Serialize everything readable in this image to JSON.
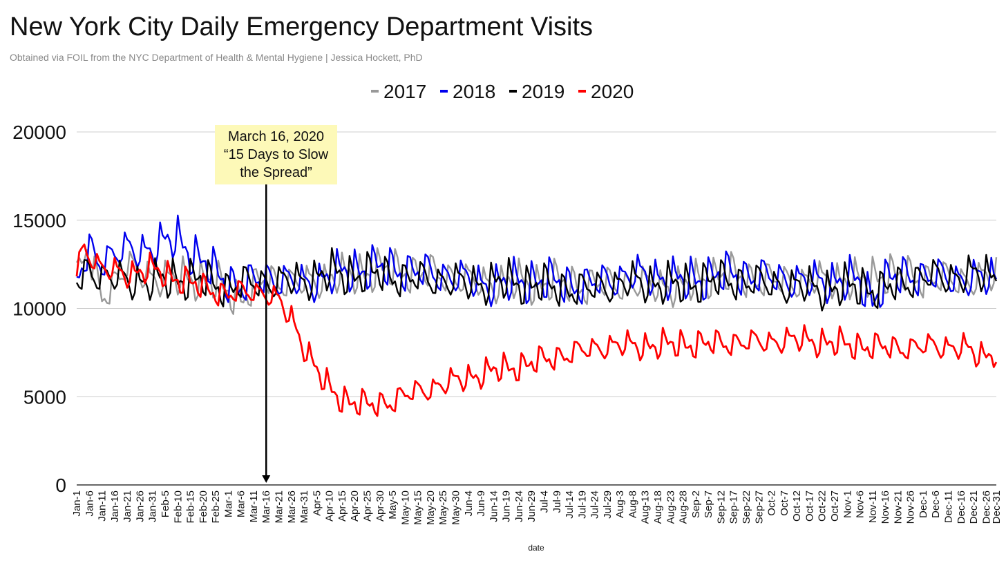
{
  "title": "New York City Daily Emergency Department Visits",
  "subtitle": "Obtained via FOIL from the NYC Department of Health & Mental Hygiene | Jessica Hockett, PhD",
  "chart_data": {
    "type": "line",
    "title": "New York City Daily Emergency Department Visits",
    "xlabel": "date",
    "ylabel": "",
    "ylim": [
      0,
      20000
    ],
    "yticks": [
      "20000",
      "15000",
      "10000",
      "5000",
      "0"
    ],
    "grid": true,
    "legend_position": "top-center",
    "x_tick_labels": [
      "Jan-1",
      "Jan-6",
      "Jan-11",
      "Jan-16",
      "Jan-21",
      "Jan-26",
      "Jan-31",
      "Feb-5",
      "Feb-10",
      "Feb-15",
      "Feb-20",
      "Feb-25",
      "Mar-1",
      "Mar-6",
      "Mar-11",
      "Mar-16",
      "Mar-21",
      "Mar-26",
      "Mar-31",
      "Apr-5",
      "Apr-10",
      "Apr-15",
      "Apr-20",
      "Apr-25",
      "Apr-30",
      "May-5",
      "May-10",
      "May-15",
      "May-20",
      "May-25",
      "May-30",
      "Jun-4",
      "Jun-9",
      "Jun-14",
      "Jun-19",
      "Jun-24",
      "Jun-29",
      "Jul-4",
      "Jul-9",
      "Jul-14",
      "Jul-19",
      "Jul-24",
      "Jul-29",
      "Aug-3",
      "Aug-8",
      "Aug-13",
      "Aug-18",
      "Aug-23",
      "Aug-28",
      "Sep-2",
      "Sep-7",
      "Sep-12",
      "Sep-17",
      "Sep-22",
      "Sep-27",
      "Oct-2",
      "Oct-7",
      "Oct-12",
      "Oct-17",
      "Oct-22",
      "Oct-27",
      "Nov-1",
      "Nov-6",
      "Nov-11",
      "Nov-16",
      "Nov-21",
      "Nov-26",
      "Dec-1",
      "Dec-6",
      "Dec-11",
      "Dec-16",
      "Dec-21",
      "Dec-26",
      "Dec-31"
    ],
    "tick_step_days": 5,
    "series": [
      {
        "name": "2017",
        "color": "#999999",
        "anchors": [
          [
            0,
            11600
          ],
          [
            4,
            13200
          ],
          [
            10,
            10800
          ],
          [
            20,
            12300
          ],
          [
            35,
            11600
          ],
          [
            45,
            11800
          ],
          [
            55,
            11400
          ],
          [
            65,
            10600
          ],
          [
            75,
            11700
          ],
          [
            90,
            11400
          ],
          [
            100,
            11800
          ],
          [
            110,
            11900
          ],
          [
            120,
            12200
          ],
          [
            130,
            12100
          ],
          [
            140,
            12000
          ],
          [
            150,
            11800
          ],
          [
            160,
            11400
          ],
          [
            170,
            11500
          ],
          [
            180,
            11400
          ],
          [
            190,
            11500
          ],
          [
            200,
            11300
          ],
          [
            210,
            11400
          ],
          [
            220,
            11400
          ],
          [
            230,
            11300
          ],
          [
            240,
            11200
          ],
          [
            250,
            11800
          ],
          [
            260,
            11900
          ],
          [
            270,
            11600
          ],
          [
            280,
            11600
          ],
          [
            290,
            11500
          ],
          [
            300,
            11700
          ],
          [
            310,
            11500
          ],
          [
            320,
            12000
          ],
          [
            330,
            11800
          ],
          [
            340,
            11700
          ],
          [
            350,
            11600
          ],
          [
            364,
            11800
          ]
        ],
        "amplitude": 1000
      },
      {
        "name": "2018",
        "color": "#0000ee",
        "anchors": [
          [
            0,
            11500
          ],
          [
            5,
            13300
          ],
          [
            10,
            12800
          ],
          [
            20,
            13300
          ],
          [
            30,
            13400
          ],
          [
            40,
            14000
          ],
          [
            48,
            12800
          ],
          [
            55,
            12000
          ],
          [
            65,
            11200
          ],
          [
            75,
            11800
          ],
          [
            90,
            11400
          ],
          [
            110,
            12200
          ],
          [
            120,
            12300
          ],
          [
            130,
            12200
          ],
          [
            140,
            12000
          ],
          [
            150,
            11800
          ],
          [
            160,
            11400
          ],
          [
            170,
            11400
          ],
          [
            180,
            11600
          ],
          [
            190,
            11500
          ],
          [
            200,
            11300
          ],
          [
            210,
            11600
          ],
          [
            220,
            11900
          ],
          [
            230,
            11800
          ],
          [
            240,
            11500
          ],
          [
            250,
            11800
          ],
          [
            260,
            12000
          ],
          [
            270,
            11800
          ],
          [
            280,
            11700
          ],
          [
            290,
            11500
          ],
          [
            300,
            11600
          ],
          [
            310,
            11500
          ],
          [
            315,
            10500
          ],
          [
            320,
            11600
          ],
          [
            330,
            11900
          ],
          [
            340,
            11800
          ],
          [
            350,
            11700
          ],
          [
            364,
            11700
          ]
        ],
        "amplitude": 1050
      },
      {
        "name": "2019",
        "color": "#000000",
        "anchors": [
          [
            0,
            11500
          ],
          [
            5,
            12300
          ],
          [
            10,
            11800
          ],
          [
            20,
            11600
          ],
          [
            30,
            11500
          ],
          [
            40,
            11700
          ],
          [
            50,
            11600
          ],
          [
            60,
            11200
          ],
          [
            70,
            11500
          ],
          [
            80,
            11500
          ],
          [
            90,
            11600
          ],
          [
            100,
            12000
          ],
          [
            110,
            11900
          ],
          [
            120,
            12000
          ],
          [
            130,
            11700
          ],
          [
            140,
            11700
          ],
          [
            150,
            11500
          ],
          [
            160,
            11400
          ],
          [
            170,
            11500
          ],
          [
            180,
            11400
          ],
          [
            190,
            11200
          ],
          [
            200,
            11100
          ],
          [
            210,
            11300
          ],
          [
            220,
            11500
          ],
          [
            230,
            11400
          ],
          [
            240,
            11300
          ],
          [
            250,
            11600
          ],
          [
            260,
            11600
          ],
          [
            270,
            11500
          ],
          [
            280,
            11300
          ],
          [
            290,
            11200
          ],
          [
            300,
            11100
          ],
          [
            310,
            11300
          ],
          [
            318,
            11000
          ],
          [
            325,
            11400
          ],
          [
            335,
            11800
          ],
          [
            345,
            11800
          ],
          [
            355,
            11900
          ],
          [
            364,
            11900
          ]
        ],
        "amplitude": 1000
      },
      {
        "name": "2020",
        "color": "#ff0000",
        "anchors": [
          [
            0,
            12300
          ],
          [
            3,
            13500
          ],
          [
            10,
            12200
          ],
          [
            20,
            12000
          ],
          [
            30,
            12200
          ],
          [
            40,
            11700
          ],
          [
            50,
            11200
          ],
          [
            60,
            10800
          ],
          [
            70,
            11000
          ],
          [
            75,
            10900
          ],
          [
            80,
            10400
          ],
          [
            85,
            9400
          ],
          [
            90,
            7900
          ],
          [
            95,
            6500
          ],
          [
            100,
            5400
          ],
          [
            105,
            4900
          ],
          [
            110,
            4700
          ],
          [
            115,
            4500
          ],
          [
            120,
            4600
          ],
          [
            125,
            4800
          ],
          [
            130,
            5100
          ],
          [
            140,
            5500
          ],
          [
            150,
            5900
          ],
          [
            160,
            6300
          ],
          [
            170,
            6600
          ],
          [
            180,
            6900
          ],
          [
            190,
            7300
          ],
          [
            200,
            7600
          ],
          [
            210,
            7900
          ],
          [
            220,
            7900
          ],
          [
            230,
            7900
          ],
          [
            240,
            8000
          ],
          [
            250,
            8000
          ],
          [
            260,
            8100
          ],
          [
            270,
            8100
          ],
          [
            280,
            8200
          ],
          [
            290,
            8200
          ],
          [
            300,
            8000
          ],
          [
            310,
            7900
          ],
          [
            320,
            7800
          ],
          [
            330,
            7800
          ],
          [
            340,
            7900
          ],
          [
            350,
            7800
          ],
          [
            358,
            7300
          ],
          [
            364,
            7600
          ]
        ],
        "amplitude": 700
      }
    ]
  },
  "annotation": {
    "line1": "March 16, 2020",
    "line2": "“15 Days to Slow",
    "line3": "the Spread”",
    "day_index": 75
  }
}
